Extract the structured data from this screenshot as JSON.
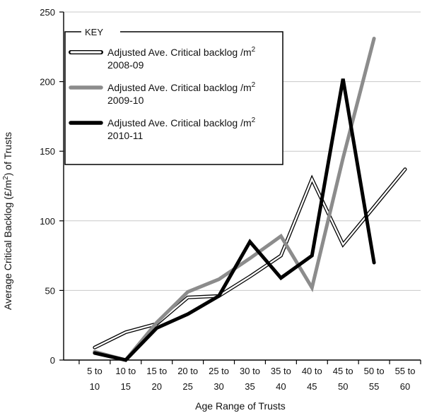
{
  "chart_data": {
    "type": "line",
    "title": "",
    "xlabel": "Age Range of Trusts",
    "ylabel": "Average Critical Backlog (£/m²) of Trusts",
    "ylabel_parts": {
      "before": "Average Critical Backlog (£/m",
      "sup": "2",
      "after": ") of Trusts"
    },
    "ylim": [
      0,
      250
    ],
    "yticks": [
      0,
      50,
      100,
      150,
      200,
      250
    ],
    "grid": true,
    "legend_position": "top-left",
    "legend_title": "KEY",
    "categories": [
      {
        "line1": "5 to",
        "line2": "10"
      },
      {
        "line1": "10 to",
        "line2": "15"
      },
      {
        "line1": "15 to",
        "line2": "20"
      },
      {
        "line1": "20 to",
        "line2": "25"
      },
      {
        "line1": "25 to",
        "line2": "30"
      },
      {
        "line1": "30 to",
        "line2": "35"
      },
      {
        "line1": "35 to",
        "line2": "40"
      },
      {
        "line1": "40 to",
        "line2": "45"
      },
      {
        "line1": "45 to",
        "line2": "50"
      },
      {
        "line1": "50 to",
        "line2": "55"
      },
      {
        "line1": "55 to",
        "line2": "60"
      }
    ],
    "series": [
      {
        "legend_line1": "Adjusted Ave. Critical backlog /m",
        "legend_sup": "2",
        "legend_line2": "2008-09",
        "style": "hollow",
        "color": "#ffffff",
        "outline": "#000000",
        "values": [
          9,
          20,
          26,
          45,
          46,
          60,
          75,
          130,
          83,
          110,
          137
        ]
      },
      {
        "legend_line1": "Adjusted Ave. Critical backlog /m",
        "legend_sup": "2",
        "legend_line2": "2009-10",
        "style": "solid",
        "color": "#8c8c8c",
        "values": [
          6,
          0,
          27,
          49,
          58,
          73,
          89,
          52,
          145,
          231,
          null
        ]
      },
      {
        "legend_line1": "Adjusted Ave. Critical backlog /m",
        "legend_sup": "2",
        "legend_line2": "2010-11",
        "style": "solid",
        "color": "#000000",
        "values": [
          5,
          0,
          23,
          33,
          46,
          85,
          59,
          75,
          202,
          70,
          null
        ]
      }
    ]
  }
}
